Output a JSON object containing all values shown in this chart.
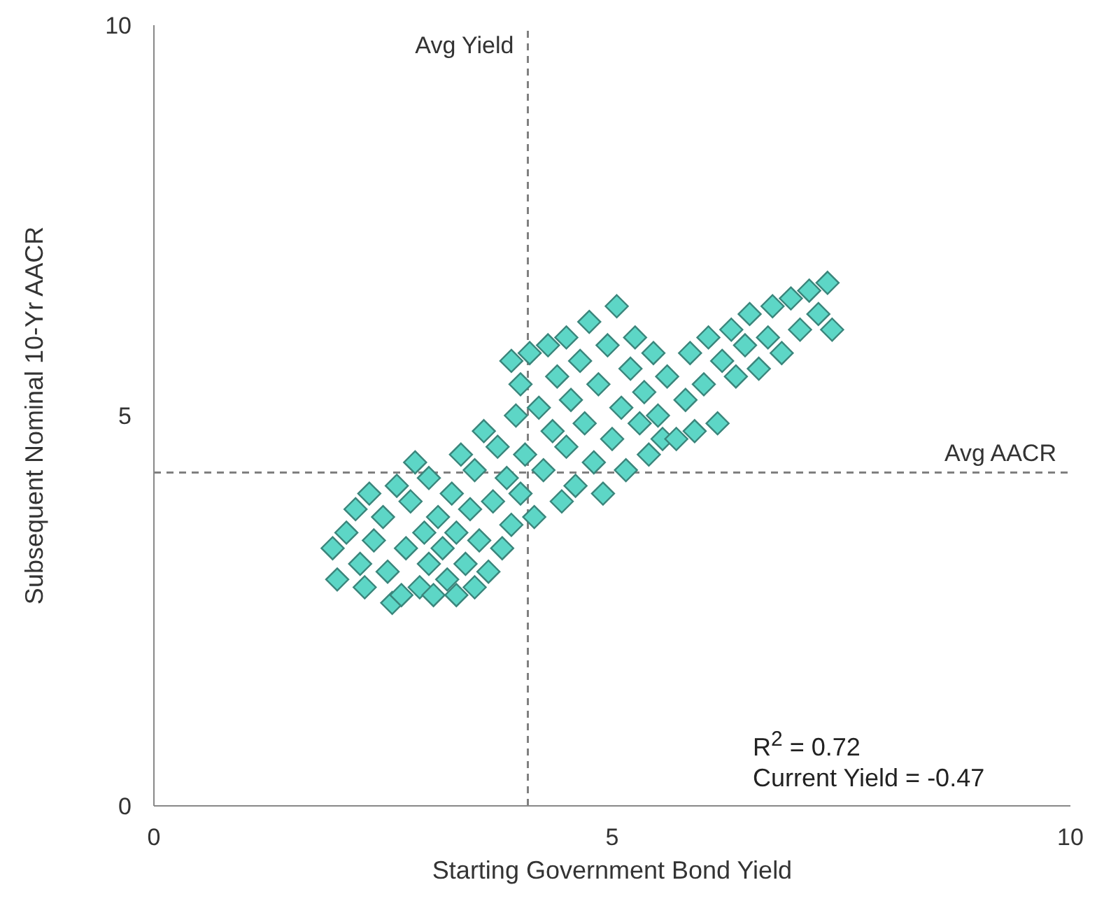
{
  "chart_data": {
    "type": "scatter",
    "xlabel": "Starting Government Bond Yield",
    "ylabel": "Subsequent Nominal 10-Yr AACR",
    "xlim": [
      0,
      10
    ],
    "ylim": [
      0,
      10
    ],
    "xticks": [
      0,
      5,
      10
    ],
    "yticks": [
      0,
      5,
      10
    ],
    "grid": false,
    "marker": "diamond",
    "series": [
      {
        "color": "#5dd6c6",
        "x": [
          1.95,
          2.0,
          2.1,
          2.2,
          2.25,
          2.3,
          2.35,
          2.4,
          2.5,
          2.55,
          2.6,
          2.65,
          2.7,
          2.75,
          2.8,
          2.85,
          2.9,
          2.95,
          3.0,
          3.0,
          3.05,
          3.1,
          3.15,
          3.2,
          3.25,
          3.3,
          3.3,
          3.35,
          3.4,
          3.45,
          3.5,
          3.5,
          3.55,
          3.6,
          3.65,
          3.7,
          3.75,
          3.8,
          3.85,
          3.9,
          3.95,
          4.0,
          3.9,
          4.0,
          4.05,
          4.1,
          4.15,
          4.2,
          4.25,
          4.3,
          4.35,
          4.4,
          4.45,
          4.5,
          4.5,
          4.55,
          4.6,
          4.65,
          4.7,
          4.75,
          4.8,
          4.85,
          4.9,
          4.95,
          5.0,
          5.05,
          5.1,
          5.15,
          5.2,
          5.25,
          5.3,
          5.35,
          5.4,
          5.45,
          5.5,
          5.55,
          5.6,
          5.7,
          5.8,
          5.85,
          5.9,
          6.0,
          6.05,
          6.15,
          6.2,
          6.3,
          6.35,
          6.45,
          6.5,
          6.6,
          6.7,
          6.75,
          6.85,
          6.95,
          7.05,
          7.15,
          7.25,
          7.35,
          7.4
        ],
        "values": [
          3.3,
          2.9,
          3.5,
          3.8,
          3.1,
          2.8,
          4.0,
          3.4,
          3.7,
          3.0,
          2.6,
          4.1,
          2.7,
          3.3,
          3.9,
          4.4,
          2.8,
          3.5,
          3.1,
          4.2,
          2.7,
          3.7,
          3.3,
          2.9,
          4.0,
          3.5,
          2.7,
          4.5,
          3.1,
          3.8,
          2.8,
          4.3,
          3.4,
          4.8,
          3.0,
          3.9,
          4.6,
          3.3,
          4.2,
          3.6,
          5.0,
          4.0,
          5.7,
          5.4,
          4.5,
          5.8,
          3.7,
          5.1,
          4.3,
          5.9,
          4.8,
          5.5,
          3.9,
          6.0,
          4.6,
          5.2,
          4.1,
          5.7,
          4.9,
          6.2,
          4.4,
          5.4,
          4.0,
          5.9,
          4.7,
          6.4,
          5.1,
          4.3,
          5.6,
          6.0,
          4.9,
          5.3,
          4.5,
          5.8,
          5.0,
          4.7,
          5.5,
          4.7,
          5.2,
          5.8,
          4.8,
          5.4,
          6.0,
          4.9,
          5.7,
          6.1,
          5.5,
          5.9,
          6.3,
          5.6,
          6.0,
          6.4,
          5.8,
          6.5,
          6.1,
          6.6,
          6.3,
          6.7,
          6.1
        ]
      }
    ],
    "ref_lines": [
      {
        "axis": "x",
        "value": 4.08,
        "label": "Avg Yield",
        "color": "#808080",
        "line_style": "dashed"
      },
      {
        "axis": "y",
        "value": 4.27,
        "label": "Avg AACR",
        "color": "#808080",
        "line_style": "dashed"
      }
    ],
    "annotations": [
      "R$^{2}$ = 0.72",
      "Current Yield = -0.47"
    ]
  }
}
